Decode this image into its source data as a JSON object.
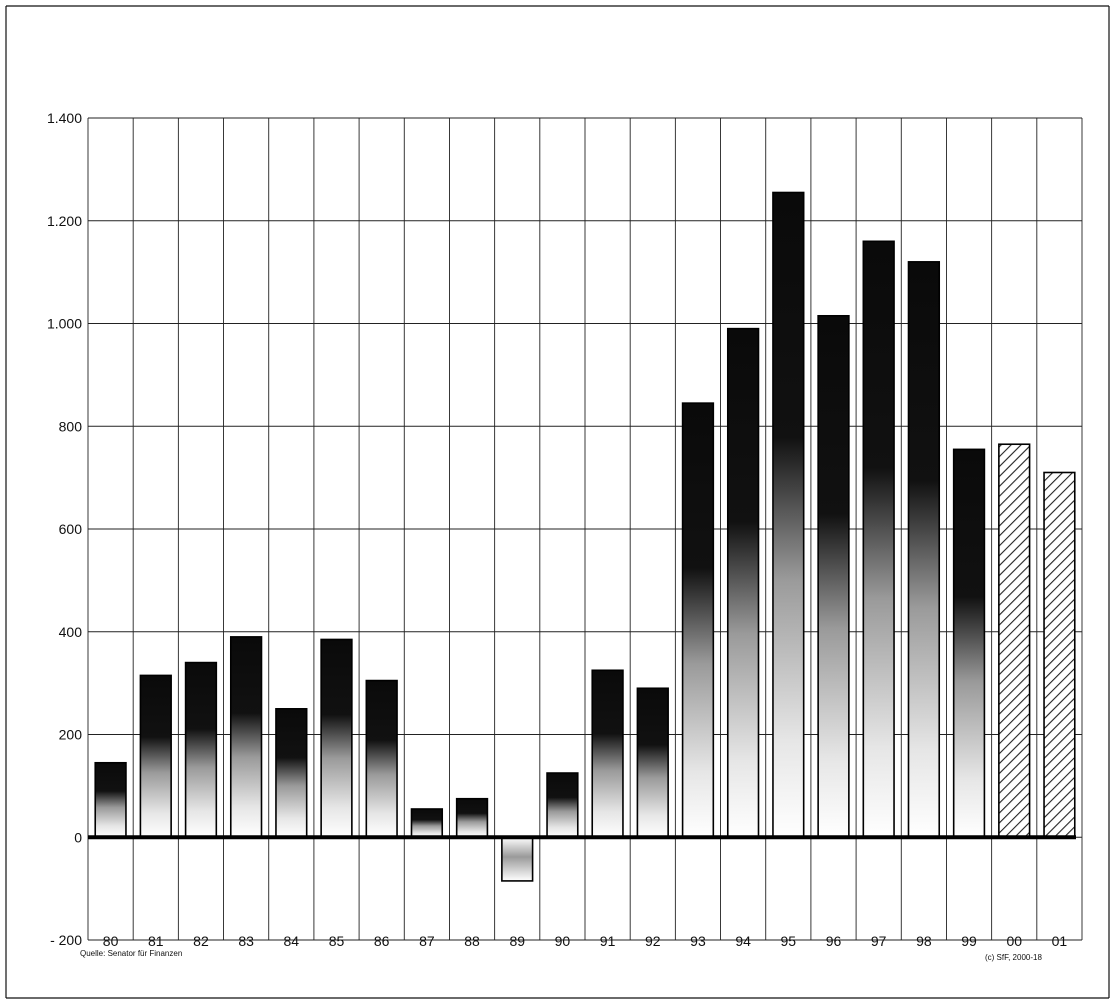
{
  "chart_data": {
    "type": "bar",
    "categories": [
      "80",
      "81",
      "82",
      "83",
      "84",
      "85",
      "86",
      "87",
      "88",
      "89",
      "90",
      "91",
      "92",
      "93",
      "94",
      "95",
      "96",
      "97",
      "98",
      "99",
      "00",
      "01"
    ],
    "values": [
      145,
      315,
      340,
      390,
      250,
      385,
      305,
      55,
      75,
      -85,
      125,
      325,
      290,
      845,
      990,
      1255,
      1015,
      1160,
      1120,
      755,
      765,
      710
    ],
    "hatched_categories": [
      "00",
      "01"
    ],
    "ylim": [
      -200,
      1400
    ],
    "yticks": [
      -200,
      0,
      200,
      400,
      600,
      800,
      1000,
      1200,
      1400
    ],
    "ytick_labels": [
      "- 200",
      "0",
      "200",
      "400",
      "600",
      "800",
      "1.000",
      "1.200",
      "1.400"
    ],
    "grid": true,
    "source": "Quelle: Senator für Finanzen",
    "copyright": "(c) SfF, 2000-18",
    "colors": {
      "bar_top": "#0a0a0a",
      "bar_mid": "#9a9a9a",
      "bar_bottom": "#ffffff",
      "bar_outline": "#000000",
      "hatch": "#222222",
      "grid": "#222222",
      "zero_line": "#000000"
    }
  }
}
